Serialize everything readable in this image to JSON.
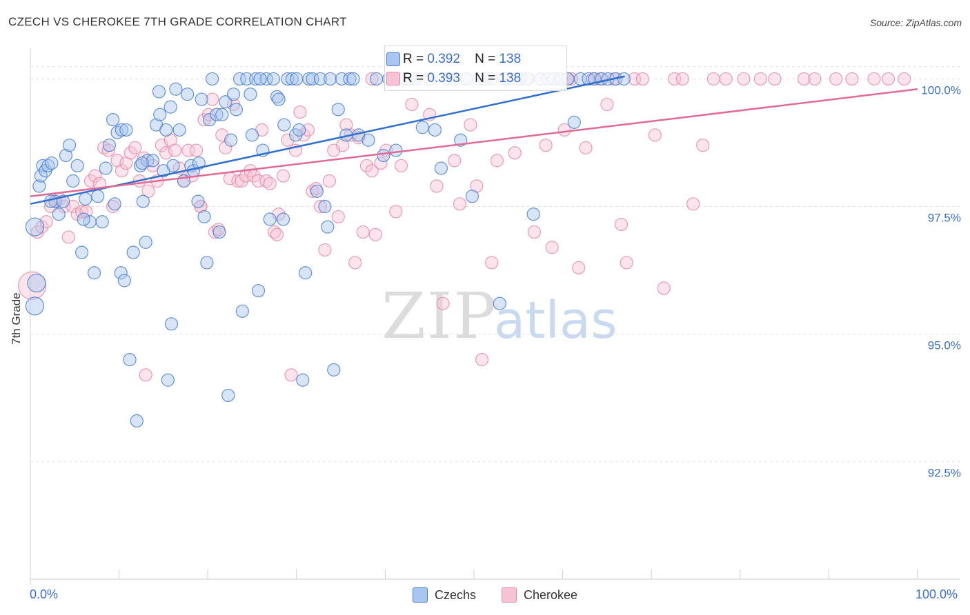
{
  "title": "CZECH VS CHEROKEE 7TH GRADE CORRELATION CHART",
  "source": "Source: ZipAtlas.com",
  "colors": {
    "czech_stroke": "#4a7fd0",
    "czech_fill": "#a9c6ee",
    "cherokee_stroke": "#e58aa8",
    "cherokee_fill": "#f6c3d4",
    "czech_line": "#2f6fcf",
    "cherokee_line": "#e06a95",
    "tick_label": "#3a6fc9",
    "grid": "#e2e2e2"
  },
  "legend": {
    "czech": {
      "r_label": "R =",
      "r_value": "0.392",
      "n_label": "N =",
      "n_value": "138"
    },
    "cherokee": {
      "r_label": "R =",
      "r_value": "0.393",
      "n_label": "N =",
      "n_value": "138"
    }
  },
  "chart_data": {
    "type": "scatter",
    "title": "CZECH VS CHEROKEE 7TH GRADE CORRELATION CHART",
    "xlabel": "",
    "ylabel": "7th Grade",
    "xlim": [
      0,
      100
    ],
    "ylim": [
      90.2,
      100.6
    ],
    "x_tick_labels": [
      "0.0%",
      "100.0%"
    ],
    "y_ticks": [
      {
        "value": 92.5,
        "label": "92.5%"
      },
      {
        "value": 95.0,
        "label": "95.0%"
      },
      {
        "value": 97.5,
        "label": "97.5%"
      },
      {
        "value": 100.0,
        "label": "100.0%"
      }
    ],
    "grid": "horizontal-dashed",
    "legend_placement": "top-center and bottom",
    "watermark": "ZIPatlas",
    "series": [
      {
        "name": "Czechs",
        "r": 0.392,
        "n": 138,
        "trendline": {
          "x": [
            0,
            67
          ],
          "y": [
            97.55,
            100.05
          ]
        },
        "points": [
          [
            0.7,
            96.0
          ],
          [
            0.5,
            95.55
          ],
          [
            0.5,
            97.1
          ],
          [
            1.0,
            97.9
          ],
          [
            1.2,
            98.1
          ],
          [
            1.4,
            98.3
          ],
          [
            1.7,
            98.2
          ],
          [
            2.0,
            98.3
          ],
          [
            2.4,
            98.35
          ],
          [
            2.8,
            97.6
          ],
          [
            3.2,
            97.35
          ],
          [
            3.7,
            97.6
          ],
          [
            4.0,
            98.5
          ],
          [
            4.4,
            98.7
          ],
          [
            4.8,
            98.0
          ],
          [
            5.3,
            98.3
          ],
          [
            5.8,
            96.6
          ],
          [
            6.2,
            97.65
          ],
          [
            6.7,
            97.2
          ],
          [
            7.2,
            96.2
          ],
          [
            7.6,
            97.7
          ],
          [
            8.1,
            97.2
          ],
          [
            8.5,
            98.25
          ],
          [
            8.9,
            98.7
          ],
          [
            9.3,
            99.2
          ],
          [
            9.8,
            98.95
          ],
          [
            10.3,
            99.0
          ],
          [
            10.8,
            99.0
          ],
          [
            10.2,
            96.2
          ],
          [
            10.6,
            96.05
          ],
          [
            11.2,
            94.5
          ],
          [
            11.6,
            96.6
          ],
          [
            12.0,
            93.3
          ],
          [
            12.4,
            98.3
          ],
          [
            12.7,
            97.6
          ],
          [
            13.0,
            96.8
          ],
          [
            13.2,
            98.4
          ],
          [
            13.8,
            98.4
          ],
          [
            14.2,
            99.1
          ],
          [
            14.6,
            99.3
          ],
          [
            14.5,
            99.75
          ],
          [
            15.0,
            98.2
          ],
          [
            15.3,
            99.0
          ],
          [
            15.5,
            94.1
          ],
          [
            15.8,
            99.45
          ],
          [
            15.9,
            95.2
          ],
          [
            16.1,
            98.3
          ],
          [
            16.4,
            99.8
          ],
          [
            16.8,
            99.0
          ],
          [
            17.3,
            98.0
          ],
          [
            17.7,
            99.7
          ],
          [
            18.1,
            98.3
          ],
          [
            18.4,
            98.2
          ],
          [
            18.9,
            97.6
          ],
          [
            19.3,
            99.6
          ],
          [
            19.6,
            97.3
          ],
          [
            19.9,
            96.4
          ],
          [
            20.2,
            99.2
          ],
          [
            20.5,
            100.0
          ],
          [
            21.0,
            99.3
          ],
          [
            21.3,
            97.0
          ],
          [
            21.6,
            99.3
          ],
          [
            22.0,
            99.55
          ],
          [
            22.3,
            93.8
          ],
          [
            22.6,
            98.8
          ],
          [
            22.9,
            99.7
          ],
          [
            23.2,
            99.4
          ],
          [
            23.6,
            100.0
          ],
          [
            23.9,
            95.45
          ],
          [
            24.4,
            100.0
          ],
          [
            24.8,
            99.7
          ],
          [
            25.0,
            98.9
          ],
          [
            25.4,
            100.0
          ],
          [
            25.7,
            95.85
          ],
          [
            26.2,
            98.6
          ],
          [
            26.6,
            100.0
          ],
          [
            27.0,
            97.25
          ],
          [
            27.4,
            100.0
          ],
          [
            27.8,
            99.65
          ],
          [
            28.0,
            99.6
          ],
          [
            28.5,
            97.25
          ],
          [
            28.6,
            99.1
          ],
          [
            29.0,
            100.0
          ],
          [
            29.5,
            100.0
          ],
          [
            29.9,
            98.9
          ],
          [
            30.3,
            99.0
          ],
          [
            30.7,
            94.1
          ],
          [
            31.0,
            96.2
          ],
          [
            31.4,
            100.0
          ],
          [
            31.8,
            100.0
          ],
          [
            32.3,
            97.8
          ],
          [
            32.7,
            100.0
          ],
          [
            33.2,
            97.5
          ],
          [
            33.5,
            97.1
          ],
          [
            33.8,
            100.0
          ],
          [
            34.2,
            94.3
          ],
          [
            34.7,
            99.4
          ],
          [
            35.1,
            100.0
          ],
          [
            35.6,
            98.9
          ],
          [
            36.0,
            100.0
          ],
          [
            36.4,
            100.0
          ],
          [
            37.0,
            98.9
          ],
          [
            38.1,
            98.8
          ],
          [
            39.0,
            100.0
          ],
          [
            39.8,
            98.5
          ],
          [
            40.4,
            100.0
          ],
          [
            41.2,
            98.6
          ],
          [
            42.0,
            100.0
          ],
          [
            42.7,
            100.0
          ],
          [
            43.4,
            100.0
          ],
          [
            44.2,
            99.05
          ],
          [
            45.0,
            100.0
          ],
          [
            45.6,
            99.0
          ],
          [
            46.3,
            98.25
          ],
          [
            47.0,
            100.0
          ],
          [
            47.8,
            100.0
          ],
          [
            48.5,
            98.8
          ],
          [
            49.2,
            100.0
          ],
          [
            49.8,
            97.7
          ],
          [
            50.5,
            100.0
          ],
          [
            51.2,
            100.0
          ],
          [
            52.0,
            100.0
          ],
          [
            52.9,
            95.6
          ],
          [
            53.6,
            100.0
          ],
          [
            54.4,
            100.0
          ],
          [
            55.2,
            100.0
          ],
          [
            56.0,
            100.0
          ],
          [
            56.7,
            97.35
          ],
          [
            57.5,
            100.0
          ],
          [
            58.3,
            100.0
          ],
          [
            59.0,
            100.0
          ],
          [
            59.8,
            100.0
          ],
          [
            60.6,
            100.0
          ],
          [
            61.3,
            99.15
          ],
          [
            62.0,
            100.0
          ],
          [
            62.9,
            100.0
          ],
          [
            63.6,
            100.0
          ],
          [
            64.4,
            100.0
          ],
          [
            65.1,
            100.0
          ],
          [
            66.0,
            100.0
          ],
          [
            66.9,
            100.0
          ],
          [
            2.3,
            97.6
          ],
          [
            6.0,
            97.25
          ],
          [
            9.5,
            97.55
          ],
          [
            12.6,
            98.35
          ],
          [
            19.0,
            98.35
          ],
          [
            25.9,
            100.0
          ],
          [
            30.0,
            100.0
          ]
        ]
      },
      {
        "name": "Cherokee",
        "r": 0.393,
        "n": 138,
        "trendline": {
          "x": [
            0,
            100
          ],
          "y": [
            97.7,
            99.8
          ]
        },
        "points": [
          [
            0.2,
            95.95
          ],
          [
            0.8,
            97.0
          ],
          [
            1.3,
            97.1
          ],
          [
            1.8,
            97.2
          ],
          [
            2.3,
            97.5
          ],
          [
            2.8,
            97.6
          ],
          [
            3.3,
            97.65
          ],
          [
            3.8,
            97.5
          ],
          [
            4.3,
            96.9
          ],
          [
            4.8,
            97.5
          ],
          [
            5.3,
            97.35
          ],
          [
            5.8,
            97.4
          ],
          [
            6.3,
            97.4
          ],
          [
            6.8,
            98.0
          ],
          [
            7.3,
            98.1
          ],
          [
            7.8,
            97.95
          ],
          [
            8.3,
            98.65
          ],
          [
            8.8,
            98.6
          ],
          [
            9.3,
            97.5
          ],
          [
            9.8,
            98.4
          ],
          [
            10.3,
            98.2
          ],
          [
            10.8,
            98.35
          ],
          [
            11.3,
            98.55
          ],
          [
            11.8,
            98.65
          ],
          [
            12.3,
            98.0
          ],
          [
            12.8,
            98.45
          ],
          [
            13.0,
            94.2
          ],
          [
            13.3,
            97.8
          ],
          [
            13.8,
            98.3
          ],
          [
            14.3,
            98.0
          ],
          [
            14.8,
            98.7
          ],
          [
            15.3,
            98.55
          ],
          [
            15.8,
            98.8
          ],
          [
            16.3,
            98.6
          ],
          [
            16.8,
            98.25
          ],
          [
            17.3,
            98.0
          ],
          [
            17.8,
            98.6
          ],
          [
            18.2,
            98.1
          ],
          [
            18.7,
            98.6
          ],
          [
            19.2,
            97.5
          ],
          [
            19.6,
            99.2
          ],
          [
            20.1,
            99.3
          ],
          [
            20.5,
            99.6
          ],
          [
            20.8,
            97.0
          ],
          [
            21.2,
            97.05
          ],
          [
            21.6,
            98.9
          ],
          [
            22.0,
            98.65
          ],
          [
            22.5,
            98.05
          ],
          [
            22.9,
            99.5
          ],
          [
            23.4,
            98.0
          ],
          [
            23.8,
            98.0
          ],
          [
            24.3,
            98.1
          ],
          [
            24.8,
            98.2
          ],
          [
            25.2,
            98.1
          ],
          [
            25.7,
            98.0
          ],
          [
            26.1,
            99.0
          ],
          [
            26.6,
            98.0
          ],
          [
            27.0,
            97.95
          ],
          [
            27.5,
            97.0
          ],
          [
            28.0,
            97.35
          ],
          [
            28.5,
            98.1
          ],
          [
            29.0,
            98.8
          ],
          [
            29.4,
            94.2
          ],
          [
            29.9,
            98.6
          ],
          [
            30.4,
            99.35
          ],
          [
            30.8,
            98.9
          ],
          [
            31.3,
            99.0
          ],
          [
            31.8,
            97.8
          ],
          [
            32.2,
            97.85
          ],
          [
            32.7,
            97.5
          ],
          [
            33.2,
            96.65
          ],
          [
            33.7,
            98.0
          ],
          [
            34.2,
            98.6
          ],
          [
            34.7,
            97.3
          ],
          [
            35.2,
            98.7
          ],
          [
            35.6,
            99.1
          ],
          [
            36.1,
            98.9
          ],
          [
            36.6,
            96.4
          ],
          [
            37.0,
            98.85
          ],
          [
            37.5,
            97.0
          ],
          [
            37.9,
            98.3
          ],
          [
            38.5,
            98.2
          ],
          [
            38.9,
            96.95
          ],
          [
            39.5,
            98.35
          ],
          [
            40.1,
            98.6
          ],
          [
            40.6,
            100.0
          ],
          [
            41.2,
            97.4
          ],
          [
            41.8,
            98.3
          ],
          [
            42.3,
            100.0
          ],
          [
            43.0,
            99.5
          ],
          [
            44.0,
            100.0
          ],
          [
            45.0,
            99.3
          ],
          [
            45.8,
            97.9
          ],
          [
            46.5,
            95.6
          ],
          [
            47.0,
            100.0
          ],
          [
            47.8,
            98.4
          ],
          [
            48.4,
            97.55
          ],
          [
            49.0,
            100.0
          ],
          [
            49.6,
            99.1
          ],
          [
            50.3,
            97.9
          ],
          [
            50.9,
            94.5
          ],
          [
            51.5,
            100.0
          ],
          [
            52.0,
            96.4
          ],
          [
            52.6,
            98.4
          ],
          [
            53.2,
            100.0
          ],
          [
            53.9,
            100.0
          ],
          [
            54.6,
            98.55
          ],
          [
            55.3,
            100.0
          ],
          [
            56.1,
            100.0
          ],
          [
            56.8,
            97.0
          ],
          [
            57.5,
            100.0
          ],
          [
            58.1,
            98.7
          ],
          [
            58.8,
            96.7
          ],
          [
            59.5,
            100.0
          ],
          [
            60.2,
            99.0
          ],
          [
            61.0,
            100.0
          ],
          [
            61.8,
            96.3
          ],
          [
            62.6,
            98.65
          ],
          [
            63.4,
            100.0
          ],
          [
            64.2,
            100.0
          ],
          [
            65.0,
            99.5
          ],
          [
            65.8,
            100.0
          ],
          [
            66.6,
            97.15
          ],
          [
            67.2,
            96.4
          ],
          [
            68.1,
            100.0
          ],
          [
            69.0,
            100.0
          ],
          [
            70.4,
            98.9
          ],
          [
            71.4,
            95.9
          ],
          [
            72.6,
            100.0
          ],
          [
            73.5,
            100.0
          ],
          [
            74.7,
            97.55
          ],
          [
            75.8,
            98.7
          ],
          [
            78.4,
            100.0
          ],
          [
            80.4,
            100.0
          ],
          [
            82.3,
            100.0
          ],
          [
            83.9,
            100.0
          ],
          [
            87.2,
            100.0
          ],
          [
            88.4,
            100.0
          ],
          [
            90.8,
            100.0
          ],
          [
            92.6,
            100.0
          ],
          [
            95.1,
            100.0
          ],
          [
            96.7,
            100.0
          ],
          [
            98.5,
            100.0
          ],
          [
            19.2,
            97.5
          ],
          [
            27.8,
            96.95
          ],
          [
            38.5,
            100.0
          ],
          [
            60.5,
            100.0
          ],
          [
            77.0,
            100.0
          ]
        ]
      }
    ]
  }
}
